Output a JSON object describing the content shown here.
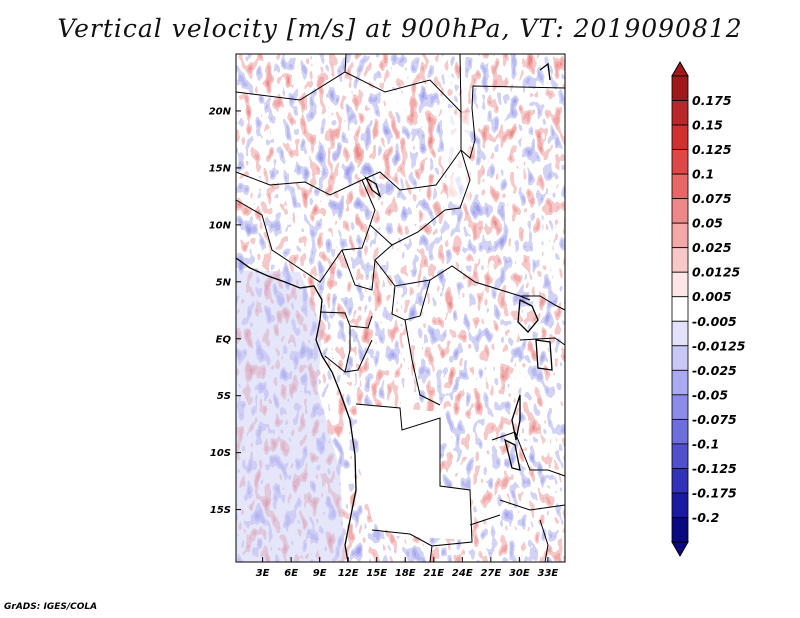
{
  "title": "Vertical velocity [m/s] at 900hPa, VT: 2019090812",
  "credit": "GrADS: IGES/COLA",
  "map": {
    "lat_labels": [
      "20N",
      "15N",
      "10N",
      "5N",
      "EQ",
      "5S",
      "10S",
      "15S"
    ],
    "lat_values": [
      20,
      15,
      10,
      5,
      0,
      -5,
      -10,
      -15
    ],
    "lon_labels": [
      "3E",
      "6E",
      "9E",
      "12E",
      "15E",
      "18E",
      "21E",
      "24E",
      "27E",
      "30E",
      "33E"
    ],
    "lon_values": [
      3,
      6,
      9,
      12,
      15,
      18,
      21,
      24,
      27,
      30,
      33
    ],
    "lon_range": [
      0.2,
      34.8
    ],
    "lat_range": [
      -19.6,
      25.0
    ]
  },
  "colorbar": {
    "labels": [
      "0.175",
      "0.15",
      "0.125",
      "0.1",
      "0.075",
      "0.05",
      "0.025",
      "0.0125",
      "0.005",
      "-0.005",
      "-0.0125",
      "-0.025",
      "-0.05",
      "-0.075",
      "-0.1",
      "-0.125",
      "-0.175",
      "-0.2"
    ],
    "colors": [
      "#a01818",
      "#b82828",
      "#d03030",
      "#e04848",
      "#e86868",
      "#ee8888",
      "#f4a8a8",
      "#f8c8c8",
      "#fce6e6",
      "#ffffff",
      "#e2e2fc",
      "#c8c8f6",
      "#aaaaf0",
      "#8c8ce8",
      "#6e6edc",
      "#5050cc",
      "#3232b8",
      "#1a1aa0",
      "#0a0a80"
    ]
  }
}
